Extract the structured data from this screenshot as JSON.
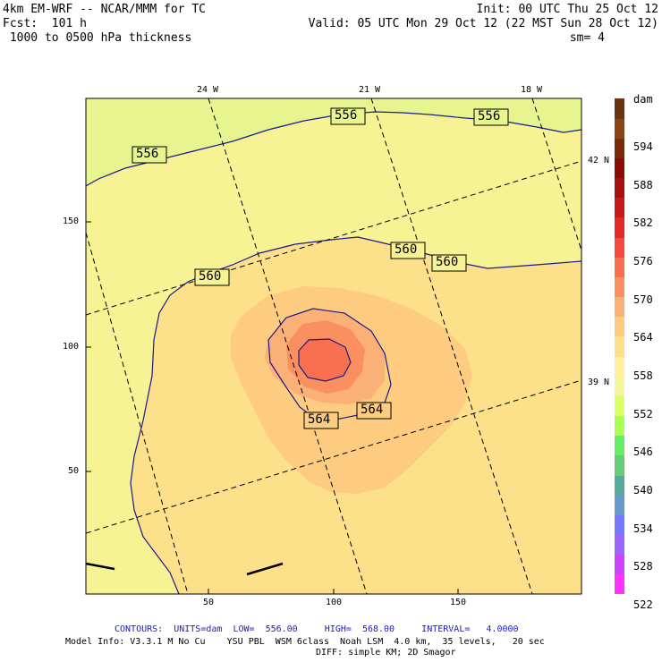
{
  "header": {
    "model": "4km EM-WRF -- NCAR/MMM for TC",
    "fcst": "Fcst:  101 h",
    "field": " 1000 to 0500 hPa thickness",
    "init": "Init: 00 UTC Thu 25 Oct 12",
    "valid": "Valid: 05 UTC Mon 29 Oct 12 (22 MST Sun 28 Oct 12)",
    "smooth": "sm= 4"
  },
  "top_lon_labels": [
    "24 W",
    "21 W",
    "18 W"
  ],
  "right_lat_labels": [
    "42 N",
    "39 N"
  ],
  "left_axis_ticks": [
    "150",
    "100",
    "50"
  ],
  "bottom_axis_ticks": [
    "50",
    "100",
    "150"
  ],
  "contour_labels": [
    "556",
    "556",
    "556",
    "560",
    "560",
    "560",
    "564",
    "564"
  ],
  "colorbar": {
    "unit": "dam",
    "labels": [
      "594",
      "588",
      "582",
      "576",
      "570",
      "564",
      "558",
      "552",
      "546",
      "540",
      "534",
      "528",
      "522"
    ],
    "colors": [
      "#ff33ff",
      "#cc44ff",
      "#9966ff",
      "#7777ff",
      "#6699cc",
      "#55aa99",
      "#66cc77",
      "#66ee66",
      "#aaff55",
      "#ddff66",
      "#f2f599",
      "#fff0a0",
      "#fde08a",
      "#fdcc80",
      "#fbb078",
      "#fa9060",
      "#f87050",
      "#f44a3e",
      "#e42828",
      "#c81818",
      "#a81010",
      "#8a0c08",
      "#7a2a0a",
      "#8b4513",
      "#6b3410"
    ]
  },
  "colors": {
    "field_556": "#e6f590",
    "field_560": "#f7f294",
    "field_564": "#fde08a",
    "field_566": "#fdcc80",
    "field_568": "#fbb078",
    "field_570": "#fa9060",
    "field_572": "#f87050",
    "contour": "#1a1a8c"
  },
  "footer": {
    "contours": "CONTOURS:  UNITS=dam  LOW=  556.00     HIGH=  568.00     INTERVAL=   4.0000",
    "model_info": "Model Info: V3.3.1 M No Cu    YSU PBL  WSM 6class  Noah LSM  4.0 km,  35 levels,   20 sec",
    "diff": "DIFF: simple KM; 2D Smagor"
  }
}
